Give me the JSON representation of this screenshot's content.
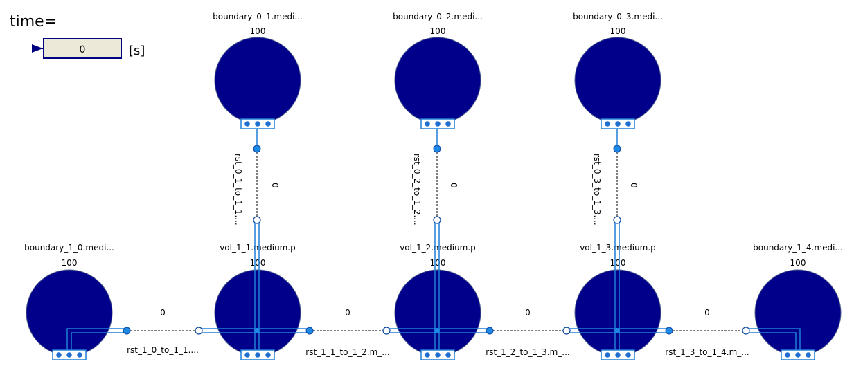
{
  "time_widget": {
    "label": "time=",
    "value": "0",
    "unit": "[s]"
  },
  "colors": {
    "node_fill": "#00008b",
    "node_stroke": "#4a5a8a",
    "pipe": "#1f7fd6",
    "port_fill": "#1e88e5",
    "dash": "#000000",
    "input_bg": "#ece9d8",
    "input_border": "#000080"
  },
  "nodes": [
    {
      "id": "boundary_0_1",
      "label": "boundary_0_1.medi...",
      "value": "100"
    },
    {
      "id": "boundary_0_2",
      "label": "boundary_0_2.medi...",
      "value": "100"
    },
    {
      "id": "boundary_0_3",
      "label": "boundary_0_3.medi...",
      "value": "100"
    },
    {
      "id": "boundary_1_0",
      "label": "boundary_1_0.medi...",
      "value": "100"
    },
    {
      "id": "vol_1_1",
      "label": "vol_1_1.medium.p",
      "value": "100"
    },
    {
      "id": "vol_1_2",
      "label": "vol_1_2.medium.p",
      "value": "100"
    },
    {
      "id": "vol_1_3",
      "label": "vol_1_3.medium.p",
      "value": "100"
    },
    {
      "id": "boundary_1_4",
      "label": "boundary_1_4.medi...",
      "value": "100"
    }
  ],
  "links": [
    {
      "id": "rst_0_1",
      "label": "rst_0_1_to_1_1....",
      "value": "0"
    },
    {
      "id": "rst_0_2",
      "label": "rst_0_2_to_1_2....",
      "value": "0"
    },
    {
      "id": "rst_0_3",
      "label": "rst_0_3_to_1_3....",
      "value": "0"
    },
    {
      "id": "rst_1_0",
      "label": "rst_1_0_to_1_1....",
      "value": "0"
    },
    {
      "id": "rst_1_1",
      "label": "rst_1_1_to_1_2.m_...",
      "value": "0"
    },
    {
      "id": "rst_1_2",
      "label": "rst_1_2_to_1_3.m_...",
      "value": "0"
    },
    {
      "id": "rst_1_3",
      "label": "rst_1_3_to_1_4.m_...",
      "value": "0"
    }
  ]
}
